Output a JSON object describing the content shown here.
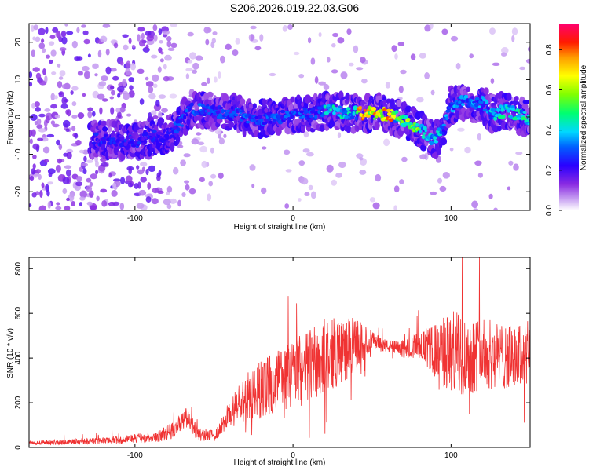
{
  "title": "S206.2026.019.22.03.G06",
  "chart_data": [
    {
      "type": "heatmap",
      "name": "spectrogram",
      "xlabel": "Height of straight line (km)",
      "ylabel": "Frequency (Hz)",
      "xlim": [
        -167,
        150
      ],
      "ylim": [
        -25,
        25
      ],
      "xticks": [
        "-100",
        "0",
        "100"
      ],
      "xtick_values": [
        -100,
        0,
        100
      ],
      "yticks": [
        "-20",
        "-10",
        "0",
        "10",
        "20"
      ],
      "ytick_values": [
        -20,
        -10,
        0,
        10,
        20
      ],
      "colorbar": {
        "label": "Normalized spectral amplitude",
        "range": [
          0,
          0.93
        ],
        "ticks": [
          "0.0",
          "0.2",
          "0.4",
          "0.6",
          "0.8"
        ],
        "tick_values": [
          0.0,
          0.2,
          0.4,
          0.6,
          0.8
        ]
      },
      "ridge": {
        "x": [
          -125,
          -110,
          -100,
          -90,
          -80,
          -72,
          -65,
          -55,
          -45,
          -35,
          -25,
          -15,
          -5,
          5,
          15,
          25,
          35,
          45,
          55,
          65,
          75,
          80,
          85,
          90,
          95,
          100,
          105,
          110,
          115,
          120,
          125,
          130,
          135,
          140,
          145,
          150
        ],
        "y": [
          -6,
          -6,
          -7,
          -5,
          -5,
          -2,
          2,
          2,
          1,
          1,
          -1,
          0,
          0,
          1,
          1,
          2,
          1,
          1,
          1,
          0,
          -2,
          -3,
          -5,
          -6,
          -3,
          3,
          4,
          4,
          3,
          4,
          1,
          1,
          2,
          1,
          0,
          -1
        ]
      }
    },
    {
      "type": "line",
      "name": "snr",
      "xlabel": "Height of straight line (km)",
      "ylabel": "SNR (10 * v/v)",
      "xlim": [
        -167,
        150
      ],
      "ylim": [
        0,
        850
      ],
      "xticks": [
        "-100",
        "0",
        "100"
      ],
      "xtick_values": [
        -100,
        0,
        100
      ],
      "yticks": [
        "0",
        "200",
        "400",
        "600",
        "800"
      ],
      "ytick_values": [
        0,
        200,
        400,
        600,
        800
      ],
      "color": "#f03333",
      "envelope": {
        "x": [
          -167,
          -140,
          -120,
          -100,
          -85,
          -75,
          -68,
          -60,
          -50,
          -40,
          -30,
          -20,
          -10,
          0,
          10,
          20,
          30,
          40,
          50,
          60,
          70,
          80,
          90,
          100,
          110,
          120,
          130,
          140,
          150
        ],
        "mean": [
          20,
          25,
          30,
          40,
          50,
          80,
          140,
          60,
          50,
          150,
          220,
          260,
          300,
          330,
          370,
          410,
          430,
          460,
          480,
          450,
          440,
          460,
          430,
          420,
          410,
          420,
          410,
          400,
          420
        ],
        "amp": [
          10,
          12,
          14,
          20,
          25,
          40,
          50,
          30,
          25,
          60,
          110,
          130,
          140,
          160,
          170,
          170,
          150,
          120,
          40,
          30,
          40,
          60,
          120,
          200,
          180,
          160,
          150,
          140,
          150
        ]
      }
    }
  ]
}
